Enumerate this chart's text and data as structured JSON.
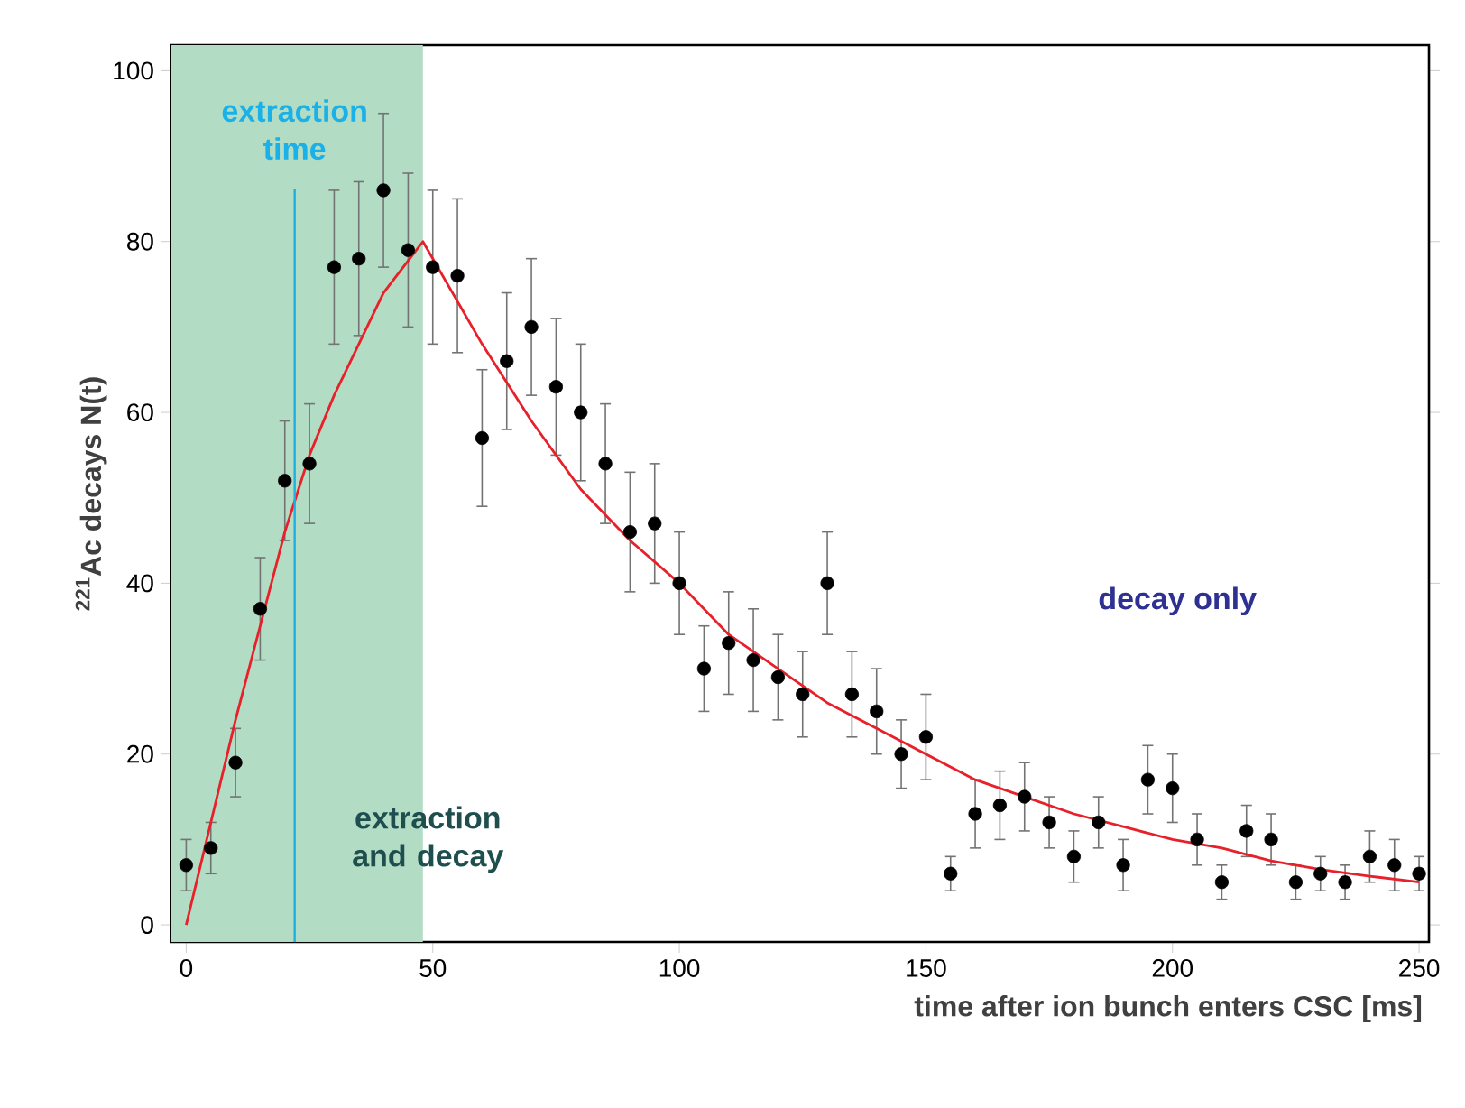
{
  "chart_data": {
    "type": "scatter",
    "xlabel": "time after ion bunch enters CSC [ms]",
    "ylabel": "$^{221}$Ac decays N(t)",
    "xlim": [
      -3,
      252
    ],
    "ylim": [
      -2,
      103
    ],
    "xticks": [
      0,
      50,
      100,
      150,
      200,
      250
    ],
    "yticks": [
      0,
      20,
      40,
      60,
      80,
      100
    ],
    "grid": false,
    "series": [
      {
        "color": "#000000",
        "x": [
          0,
          5,
          10,
          15,
          20,
          25,
          30,
          35,
          40,
          45,
          50,
          55,
          60,
          65,
          70,
          75,
          80,
          85,
          90,
          95,
          100,
          105,
          110,
          115,
          120,
          125,
          130,
          135,
          140,
          145,
          150,
          155,
          160,
          165,
          170,
          175,
          180,
          185,
          190,
          195,
          200,
          205,
          210,
          215,
          220,
          225,
          230,
          235,
          240,
          245,
          250
        ],
        "values": [
          7,
          9,
          19,
          37,
          52,
          54,
          77,
          78,
          86,
          79,
          77,
          76,
          57,
          66,
          70,
          63,
          60,
          54,
          46,
          47,
          40,
          30,
          33,
          31,
          29,
          27,
          40,
          27,
          25,
          20,
          22,
          6,
          13,
          14,
          15,
          12,
          8,
          12,
          7,
          17,
          16,
          10,
          5,
          11,
          10,
          5,
          6,
          5,
          8,
          7,
          6
        ],
        "errors": [
          3,
          3,
          4,
          6,
          7,
          7,
          9,
          9,
          9,
          9,
          9,
          9,
          8,
          8,
          8,
          8,
          8,
          7,
          7,
          7,
          6,
          5,
          6,
          6,
          5,
          5,
          6,
          5,
          5,
          4,
          5,
          2,
          4,
          4,
          4,
          3,
          3,
          3,
          3,
          4,
          4,
          3,
          2,
          3,
          3,
          2,
          2,
          2,
          3,
          3,
          2
        ]
      },
      {
        "type": "line",
        "color": "#e8202a",
        "x": [
          0,
          5,
          10,
          15,
          20,
          25,
          30,
          35,
          40,
          44,
          48,
          60,
          70,
          80,
          90,
          100,
          110,
          120,
          130,
          140,
          150,
          160,
          170,
          180,
          190,
          200,
          210,
          220,
          230,
          240,
          250
        ],
        "values": [
          0,
          12,
          24,
          35,
          46,
          55,
          62,
          68,
          74,
          77,
          80,
          68,
          59,
          51,
          45,
          40,
          34,
          30,
          26,
          23,
          20,
          17,
          15,
          13,
          11.5,
          10,
          9,
          7.5,
          6.5,
          5.7,
          5
        ]
      }
    ],
    "bands": [
      {
        "axis": "x",
        "from": -3,
        "to": 48,
        "color": "#b3dcc4"
      }
    ],
    "ref_lines": [
      {
        "axis": "x",
        "value": 22,
        "label": "extraction time",
        "color": "#1ab0e8"
      }
    ],
    "annotations": [
      {
        "text": "extraction and decay",
        "x": 49,
        "y": 10
      },
      "decay only"
    ]
  }
}
